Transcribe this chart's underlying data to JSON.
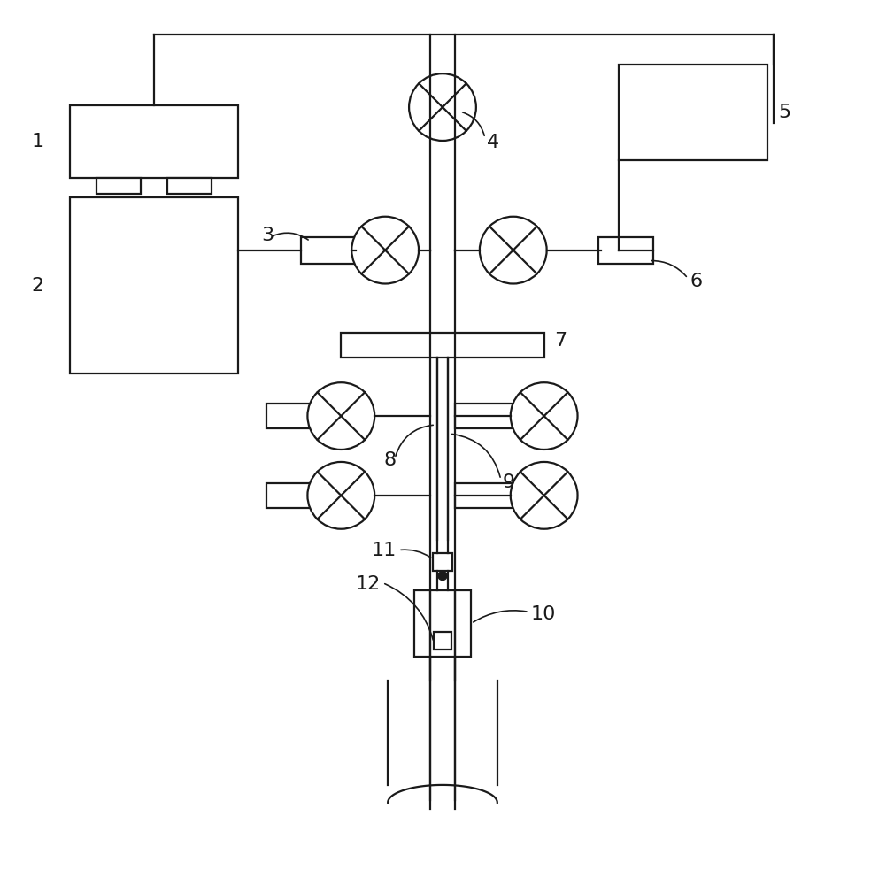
{
  "bg_color": "#ffffff",
  "line_color": "#1a1a1a",
  "lw": 1.6,
  "fig_w": 9.84,
  "fig_h": 10.0
}
